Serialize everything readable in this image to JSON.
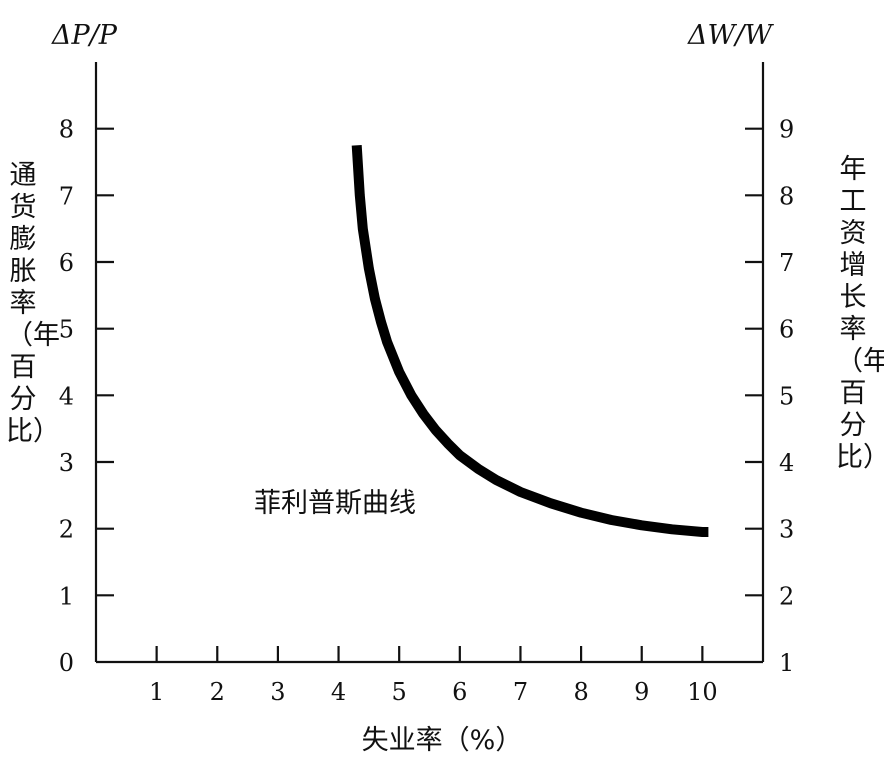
{
  "chart_data": {
    "type": "line",
    "title": "",
    "xlabel": "失业率（%）",
    "ylabel_left": "通货膨胀率（年百分比）",
    "ylabel_right": "年工资增长率（年百分比）",
    "left_axis_title": "ΔP/P",
    "right_axis_title": "ΔW/W",
    "xlim": [
      0,
      11
    ],
    "ylim_left": [
      0,
      9
    ],
    "ylim_right": [
      1,
      10
    ],
    "x_ticks": [
      1,
      2,
      3,
      4,
      5,
      6,
      7,
      8,
      9,
      10
    ],
    "y_left_ticks": [
      0,
      1,
      2,
      3,
      4,
      5,
      6,
      7,
      8
    ],
    "y_right_ticks": [
      1,
      2,
      3,
      4,
      5,
      6,
      7,
      8,
      9
    ],
    "grid": false,
    "annotation": "菲利普斯曲线",
    "series": [
      {
        "x": [
          4.3,
          4.35,
          4.4,
          4.5,
          4.6,
          4.7,
          4.8,
          5.0,
          5.2,
          5.4,
          5.6,
          5.8,
          6.0,
          6.3,
          6.6,
          7.0,
          7.5,
          8.0,
          8.5,
          9.0,
          9.5,
          10.0,
          10.1
        ],
        "y": [
          7.75,
          7.0,
          6.5,
          5.9,
          5.45,
          5.1,
          4.8,
          4.35,
          4.0,
          3.72,
          3.48,
          3.28,
          3.1,
          2.9,
          2.73,
          2.55,
          2.38,
          2.24,
          2.13,
          2.05,
          1.99,
          1.95,
          1.95
        ]
      }
    ]
  }
}
